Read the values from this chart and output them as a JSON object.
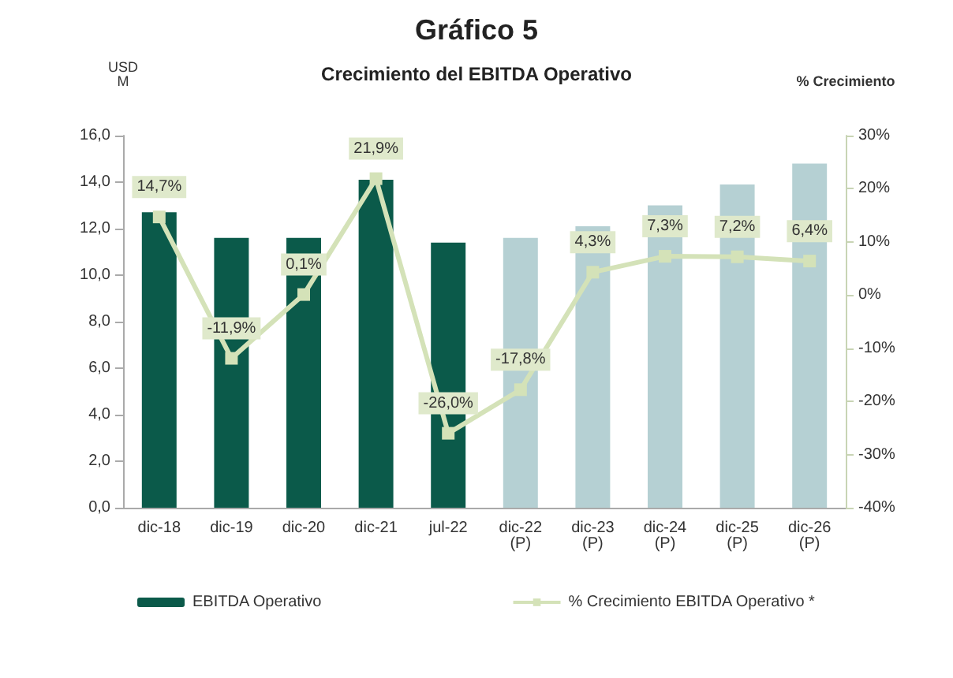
{
  "chart_data": {
    "type": "bar",
    "title": "Crecimiento del EBITDA Operativo",
    "annotations": [
      "Gráfico 5"
    ],
    "ylabel": "USD\nM",
    "y2label": "% Crecimiento",
    "categories": [
      "dic-18",
      "dic-19",
      "dic-20",
      "dic-21",
      "jul-22",
      "dic-22\n(P)",
      "dic-23\n(P)",
      "dic-24\n(P)",
      "dic-25\n(P)",
      "dic-26\n(P)"
    ],
    "series": [
      {
        "name": "EBITDA Operativo",
        "color": "#0b5a4a",
        "colors": [
          "#0b5a4a",
          "#0b5a4a",
          "#0b5a4a",
          "#0b5a4a",
          "#0b5a4a",
          "#b5d0d3",
          "#b5d0d3",
          "#b5d0d3",
          "#b5d0d3",
          "#b5d0d3"
        ],
        "values": [
          12.7,
          11.6,
          11.6,
          14.1,
          11.4,
          11.6,
          12.1,
          13.0,
          13.9,
          14.8
        ]
      },
      {
        "name": "% Crecimiento EBITDA Operativo *",
        "type": "line",
        "axis": "y2",
        "color": "#d4e2b8",
        "marker": "square",
        "values": [
          14.7,
          -11.9,
          0.1,
          21.9,
          -26.0,
          -17.8,
          4.3,
          7.3,
          7.2,
          6.4
        ],
        "value_labels": [
          "14,7%",
          "-11,9%",
          "0,1%",
          "21,9%",
          "-26,0%",
          "-17,8%",
          "4,3%",
          "7,3%",
          "7,2%",
          "6,4%"
        ]
      }
    ],
    "ylim": [
      0,
      16
    ],
    "yticks": [
      {
        "value": 0,
        "label": "0,0"
      },
      {
        "value": 2,
        "label": "2,0"
      },
      {
        "value": 4,
        "label": "4,0"
      },
      {
        "value": 6,
        "label": "6,0"
      },
      {
        "value": 8,
        "label": "8,0"
      },
      {
        "value": 10,
        "label": "10,0"
      },
      {
        "value": 12,
        "label": "12,0"
      },
      {
        "value": 14,
        "label": "14,0"
      },
      {
        "value": 16,
        "label": "16,0"
      }
    ],
    "y2lim": [
      -40,
      30
    ],
    "y2ticks": [
      {
        "value": -40,
        "label": "-40%"
      },
      {
        "value": -30,
        "label": "-30%"
      },
      {
        "value": -20,
        "label": "-20%"
      },
      {
        "value": -10,
        "label": "-10%"
      },
      {
        "value": 0,
        "label": "0%"
      },
      {
        "value": 10,
        "label": "10%"
      },
      {
        "value": 20,
        "label": "20%"
      },
      {
        "value": 30,
        "label": "30%"
      }
    ],
    "grid": false,
    "legend": "bottom"
  }
}
